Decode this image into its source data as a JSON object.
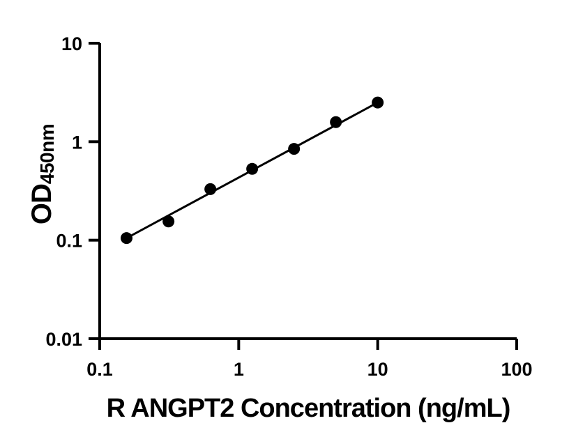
{
  "figure": {
    "background_color": "#ffffff",
    "foreground_color": "#000000"
  },
  "chart_data": {
    "type": "scatter",
    "title": "",
    "xlabel": "R ANGPT2 Concentration (ng/mL)",
    "ylabel": "OD450nm",
    "ylabel_main": "OD",
    "ylabel_sub": "450nm",
    "xscale": "log",
    "yscale": "log",
    "xlim": [
      0.1,
      100
    ],
    "ylim": [
      0.01,
      10
    ],
    "x_ticks": {
      "values": [
        0.1,
        1,
        10,
        100
      ],
      "labels": [
        "0.1",
        "1",
        "10",
        "100"
      ]
    },
    "y_ticks": {
      "values": [
        0.01,
        0.1,
        1,
        10
      ],
      "labels": [
        "0.01",
        "0.1",
        "1",
        "10"
      ]
    },
    "grid": false,
    "legend": false,
    "series": [
      {
        "marker": "filled-circle",
        "marker_color": "#000000",
        "line": "linear-fit",
        "line_color": "#000000",
        "x": [
          0.156,
          0.3125,
          0.625,
          1.25,
          2.5,
          5,
          10
        ],
        "y": [
          0.105,
          0.155,
          0.33,
          0.53,
          0.845,
          1.58,
          2.5
        ]
      }
    ]
  }
}
